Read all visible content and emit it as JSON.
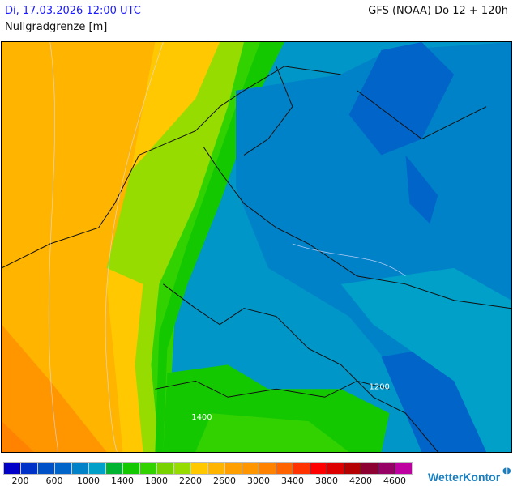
{
  "header": {
    "date": "Di, 17.03.2026 12:00 UTC",
    "model": "GFS (NOAA) Do 12 + 120h",
    "parameter": "Nullgradgrenze [m]"
  },
  "map": {
    "contour_labels": [
      "1200",
      "1400"
    ]
  },
  "legend": {
    "colors": [
      "#0000c8",
      "#0032c8",
      "#0050c8",
      "#0064c8",
      "#0082c8",
      "#00a0c8",
      "#00b432",
      "#14c800",
      "#32d200",
      "#78d200",
      "#96dc00",
      "#ffc800",
      "#ffb400",
      "#ffa000",
      "#ff9600",
      "#ff8200",
      "#ff6400",
      "#ff3200",
      "#ff0000",
      "#dc0000",
      "#b40000",
      "#8c0032",
      "#960064",
      "#be00a0"
    ],
    "labels": [
      "200",
      "600",
      "1000",
      "1400",
      "1800",
      "2200",
      "2600",
      "3000",
      "3400",
      "3800",
      "4200",
      "4600"
    ]
  },
  "brand": {
    "name": "WetterKontor",
    "icon": "wetterkontor-logo-icon"
  }
}
